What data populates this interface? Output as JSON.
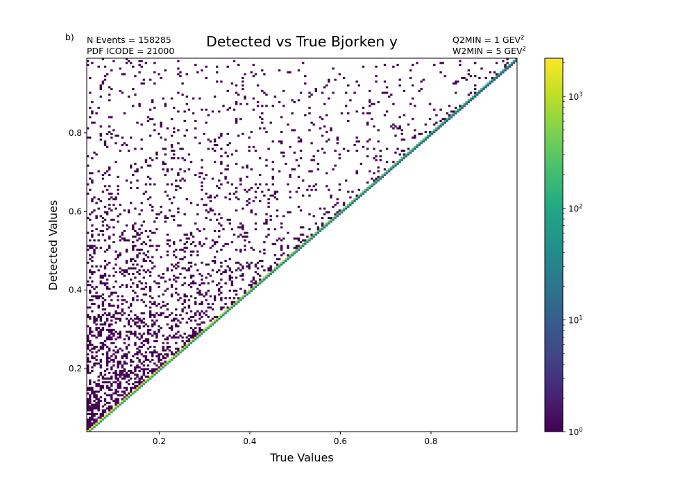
{
  "chart_data": {
    "type": "heatmap",
    "panel_label": "b)",
    "title": "Detected vs True Bjorken y",
    "info_left": [
      "N Events =  158285",
      "PDF ICODE = 21000"
    ],
    "info_right": [
      {
        "text": "Q2MIN = 1 GEV",
        "sup": "2"
      },
      {
        "text": "W2MIN = 5 GEV",
        "sup": "2"
      }
    ],
    "xlabel": "True Values",
    "ylabel": "Detected Values",
    "xlim": [
      0.04,
      0.99
    ],
    "ylim": [
      0.04,
      0.99
    ],
    "xticks": [
      {
        "value": 0.2,
        "label": "0.2"
      },
      {
        "value": 0.4,
        "label": "0.4"
      },
      {
        "value": 0.6,
        "label": "0.6"
      },
      {
        "value": 0.8,
        "label": "0.8"
      }
    ],
    "yticks": [
      {
        "value": 0.2,
        "label": "0.2"
      },
      {
        "value": 0.4,
        "label": "0.4"
      },
      {
        "value": 0.6,
        "label": "0.6"
      },
      {
        "value": 0.8,
        "label": "0.8"
      }
    ],
    "bins": [
      200,
      200
    ],
    "colorbar": {
      "scale": "log",
      "colormap": "viridis",
      "range": [
        1,
        2200
      ],
      "ticks": [
        {
          "value": 1,
          "base": "10",
          "exp": "0"
        },
        {
          "value": 10,
          "base": "10",
          "exp": "1"
        },
        {
          "value": 100,
          "base": "10",
          "exp": "2"
        },
        {
          "value": 1000,
          "base": "10",
          "exp": "3"
        }
      ]
    },
    "distribution": "counts concentrated on the diagonal detected = true (peak ~2000 at low y, ~100 at high y), empty below the diagonal, sparse single counts above it thinning toward high detected values"
  }
}
